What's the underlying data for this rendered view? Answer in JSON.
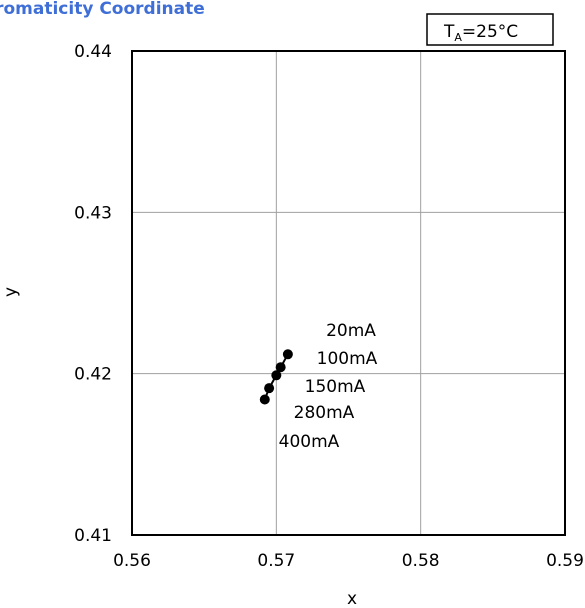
{
  "title": "hromaticity Coordinate",
  "condition": {
    "main": "T",
    "sub": "A",
    "rest": "=25°C"
  },
  "chart_data": {
    "type": "scatter",
    "title": "hromaticity Coordinate",
    "xlabel": "x",
    "ylabel": "y",
    "xlim": [
      0.56,
      0.59
    ],
    "ylim": [
      0.41,
      0.44
    ],
    "xticks": [
      "0.56",
      "0.57",
      "0.58",
      "0.59"
    ],
    "yticks": [
      "0.41",
      "0.42",
      "0.43",
      "0.44"
    ],
    "grid": true,
    "legend": "none",
    "series": [
      {
        "line": true,
        "points": [
          {
            "label": "20mA",
            "x": 0.5708,
            "y": 0.4212
          },
          {
            "label": "100mA",
            "x": 0.5703,
            "y": 0.4204
          },
          {
            "label": "150mA",
            "x": 0.57,
            "y": 0.4199
          },
          {
            "label": "280mA",
            "x": 0.5695,
            "y": 0.4191
          },
          {
            "label": "400mA",
            "x": 0.5692,
            "y": 0.4184
          }
        ]
      }
    ]
  }
}
